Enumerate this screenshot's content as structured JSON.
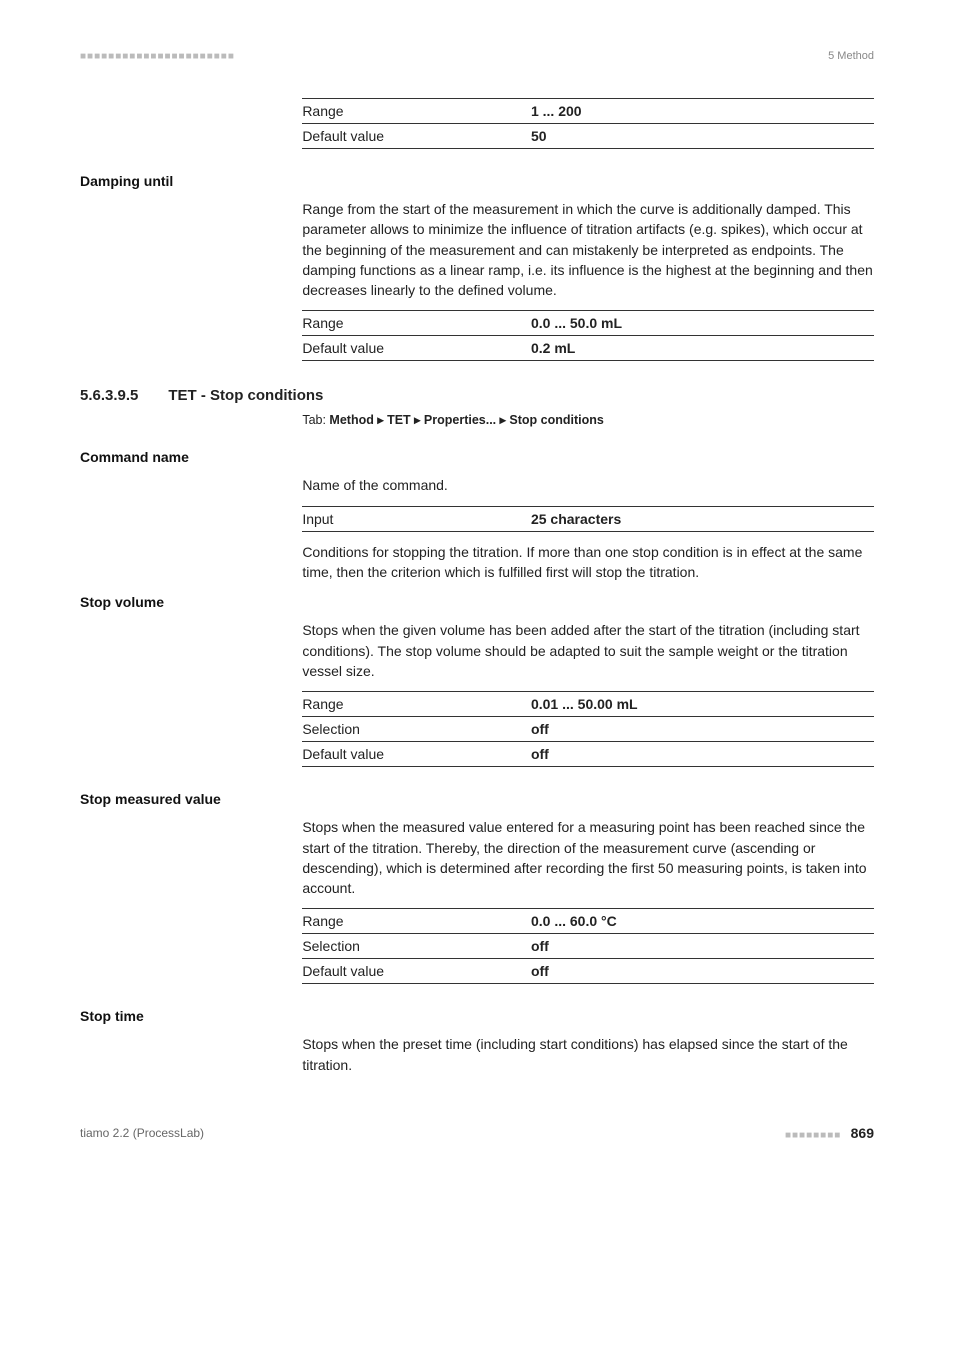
{
  "topline": {
    "left": "■■■■■■■■■■■■■■■■■■■■■■",
    "right": "5 Method"
  },
  "table1": {
    "rows": [
      {
        "label": "Range",
        "value": "1 ... 200"
      },
      {
        "label": "Default value",
        "value": "50"
      }
    ]
  },
  "damping": {
    "heading": "Damping until",
    "text": "Range from the start of the measurement in which the curve is additionally damped. This parameter allows to minimize the influence of titration artifacts (e.g. spikes), which occur at the beginning of the measurement and can mistakenly be interpreted as endpoints. The damping functions as a linear ramp, i.e. its influence is the highest at the beginning and then decreases linearly to the defined volume.",
    "rows": [
      {
        "label": "Range",
        "value": "0.0 ... 50.0 mL"
      },
      {
        "label": "Default value",
        "value": "0.2 mL"
      }
    ]
  },
  "numbered": {
    "num": "5.6.3.9.5",
    "title": "TET - Stop conditions",
    "tab_prefix": "Tab: ",
    "tab_path": "Method ▸ TET ▸ Properties... ▸ Stop conditions"
  },
  "commandname": {
    "heading": "Command name",
    "text1": "Name of the command.",
    "input_label": "Input",
    "input_val": "25 characters",
    "text2": "Conditions for stopping the titration. If more than one stop condition is in effect at the same time, then the criterion which is fulfilled first will stop the titration."
  },
  "stopvolume": {
    "heading": "Stop volume",
    "text": "Stops when the given volume has been added after the start of the titration (including start conditions). The stop volume should be adapted to suit the sample weight or the titration vessel size.",
    "rows": [
      {
        "label": "Range",
        "value": "0.01 ... 50.00 mL"
      },
      {
        "label": "Selection",
        "value": "off"
      },
      {
        "label": "Default value",
        "value": "off"
      }
    ]
  },
  "stopmeasured": {
    "heading": "Stop measured value",
    "text": "Stops when the measured value entered for a measuring point has been reached since the start of the titration. Thereby, the direction of the measurement curve (ascending or descending), which is determined after recording the first 50 measuring points, is taken into account.",
    "rows": [
      {
        "label": "Range",
        "value": "0.0 ... 60.0 °C"
      },
      {
        "label": "Selection",
        "value": "off"
      },
      {
        "label": "Default value",
        "value": "off"
      }
    ]
  },
  "stoptime": {
    "heading": "Stop time",
    "text": "Stops when the preset time (including start conditions) has elapsed since the start of the titration."
  },
  "footer": {
    "left": "tiamo 2.2 (ProcessLab)",
    "dashes": "■■■■■■■■",
    "pageno": "869"
  }
}
